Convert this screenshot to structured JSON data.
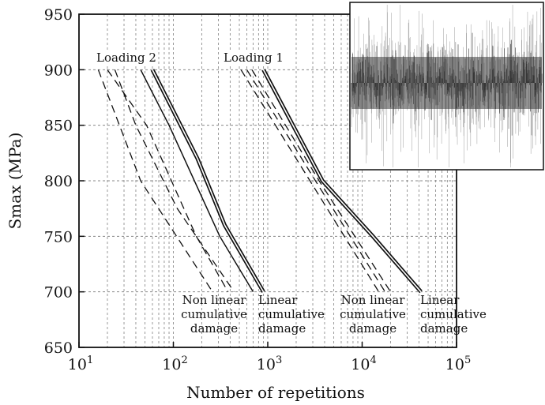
{
  "chart_data": {
    "type": "line",
    "xlabel": "Number of repetitions",
    "ylabel": "Smax (MPa)",
    "xscale": "log",
    "xlim": [
      10,
      100000
    ],
    "ylim": [
      650,
      950
    ],
    "x_ticks": [
      {
        "base": "10",
        "exp": "1"
      },
      {
        "base": "10",
        "exp": "2"
      },
      {
        "base": "10",
        "exp": "3"
      },
      {
        "base": "10",
        "exp": "4"
      },
      {
        "base": "10",
        "exp": "5"
      }
    ],
    "y_ticks": [
      "650",
      "700",
      "750",
      "800",
      "850",
      "900",
      "950"
    ],
    "grid": true,
    "series": [
      {
        "group": "Loading 2",
        "style": "dashed",
        "points": [
          [
            16,
            900
          ],
          [
            45,
            800
          ],
          [
            260,
            700
          ]
        ]
      },
      {
        "group": "Loading 2",
        "style": "dashed",
        "points": [
          [
            20,
            900
          ],
          [
            52,
            850
          ],
          [
            175,
            750
          ],
          [
            380,
            700
          ]
        ]
      },
      {
        "group": "Loading 2",
        "style": "dashed",
        "points": [
          [
            24,
            900
          ],
          [
            40,
            850
          ],
          [
            110,
            775
          ],
          [
            440,
            700
          ]
        ]
      },
      {
        "group": "Loading 2",
        "style": "solid",
        "points": [
          [
            45,
            900
          ],
          [
            90,
            850
          ],
          [
            310,
            750
          ],
          [
            700,
            700
          ]
        ]
      },
      {
        "group": "Loading 2",
        "style": "double",
        "points": [
          [
            60,
            900
          ],
          [
            180,
            820
          ],
          [
            350,
            760
          ],
          [
            900,
            700
          ]
        ]
      },
      {
        "group": "Loading 1",
        "style": "dashed",
        "points": [
          [
            520,
            900
          ],
          [
            2800,
            800
          ],
          [
            15000,
            700
          ]
        ]
      },
      {
        "group": "Loading 1",
        "style": "dashed",
        "points": [
          [
            600,
            900
          ],
          [
            3200,
            800
          ],
          [
            17500,
            700
          ]
        ]
      },
      {
        "group": "Loading 1",
        "style": "dashed",
        "points": [
          [
            680,
            900
          ],
          [
            3500,
            800
          ],
          [
            20000,
            700
          ]
        ]
      },
      {
        "group": "Loading 1",
        "style": "double",
        "points": [
          [
            900,
            900
          ],
          [
            3800,
            800
          ],
          [
            13000,
            750
          ],
          [
            42000,
            700
          ]
        ]
      }
    ],
    "annotations": [
      {
        "lines": [
          "Loading 2"
        ]
      },
      {
        "lines": [
          "Loading 1"
        ]
      },
      {
        "lines": [
          "Non linear",
          "cumulative",
          "damage"
        ]
      },
      {
        "lines": [
          "Linear",
          "cumulative",
          "damage"
        ]
      },
      {
        "lines": [
          "Non linear",
          "cumulative",
          "damage"
        ]
      },
      {
        "lines": [
          "Linear",
          "cumulative",
          "damage"
        ]
      }
    ],
    "inset": {
      "content": "random loading signal"
    }
  }
}
